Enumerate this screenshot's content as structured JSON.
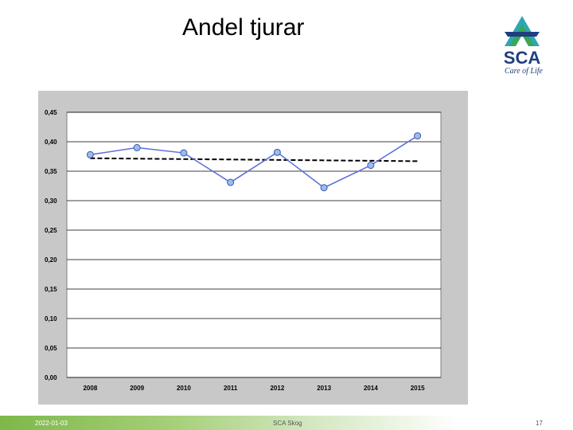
{
  "slide": {
    "title": "Andel tjurar"
  },
  "logo": {
    "brand": "SCA",
    "tagline": "Care of Life"
  },
  "footer": {
    "date": "2022-01-03",
    "center": "SCA Skog",
    "page": "17"
  },
  "colors": {
    "series_line": "#5b6fd6",
    "marker_fill": "#9ebbe8",
    "marker_stroke": "#3a57b5",
    "trend": "#000000",
    "plot_bg": "#ffffff",
    "frame_bg": "#c8c8c8",
    "footer_green": "#7db84a",
    "logo_blue": "#1f3f7f",
    "logo_teal": "#2ea7b5",
    "logo_green": "#3aa65a"
  },
  "chart_data": {
    "type": "line",
    "title": "Andel tjurar",
    "xlabel": "",
    "ylabel": "",
    "categories": [
      "2008",
      "2009",
      "2010",
      "2011",
      "2012",
      "2013",
      "2014",
      "2015"
    ],
    "series": [
      {
        "values": [
          0.378,
          0.39,
          0.381,
          0.331,
          0.382,
          0.322,
          0.36,
          0.41
        ]
      }
    ],
    "trend": {
      "type": "linear",
      "style": "dashed",
      "start": 0.372,
      "end": 0.367
    },
    "ylim": [
      0,
      0.45
    ],
    "yticks": [
      "0,45",
      "0,40",
      "0,35",
      "0,30",
      "0,25",
      "0,20",
      "0,15",
      "0,10",
      "0,05",
      "0,00"
    ],
    "ytick_values": [
      0.45,
      0.4,
      0.35,
      0.3,
      0.25,
      0.2,
      0.15,
      0.1,
      0.05,
      0.0
    ],
    "grid": "horizontal",
    "legend": "none"
  }
}
